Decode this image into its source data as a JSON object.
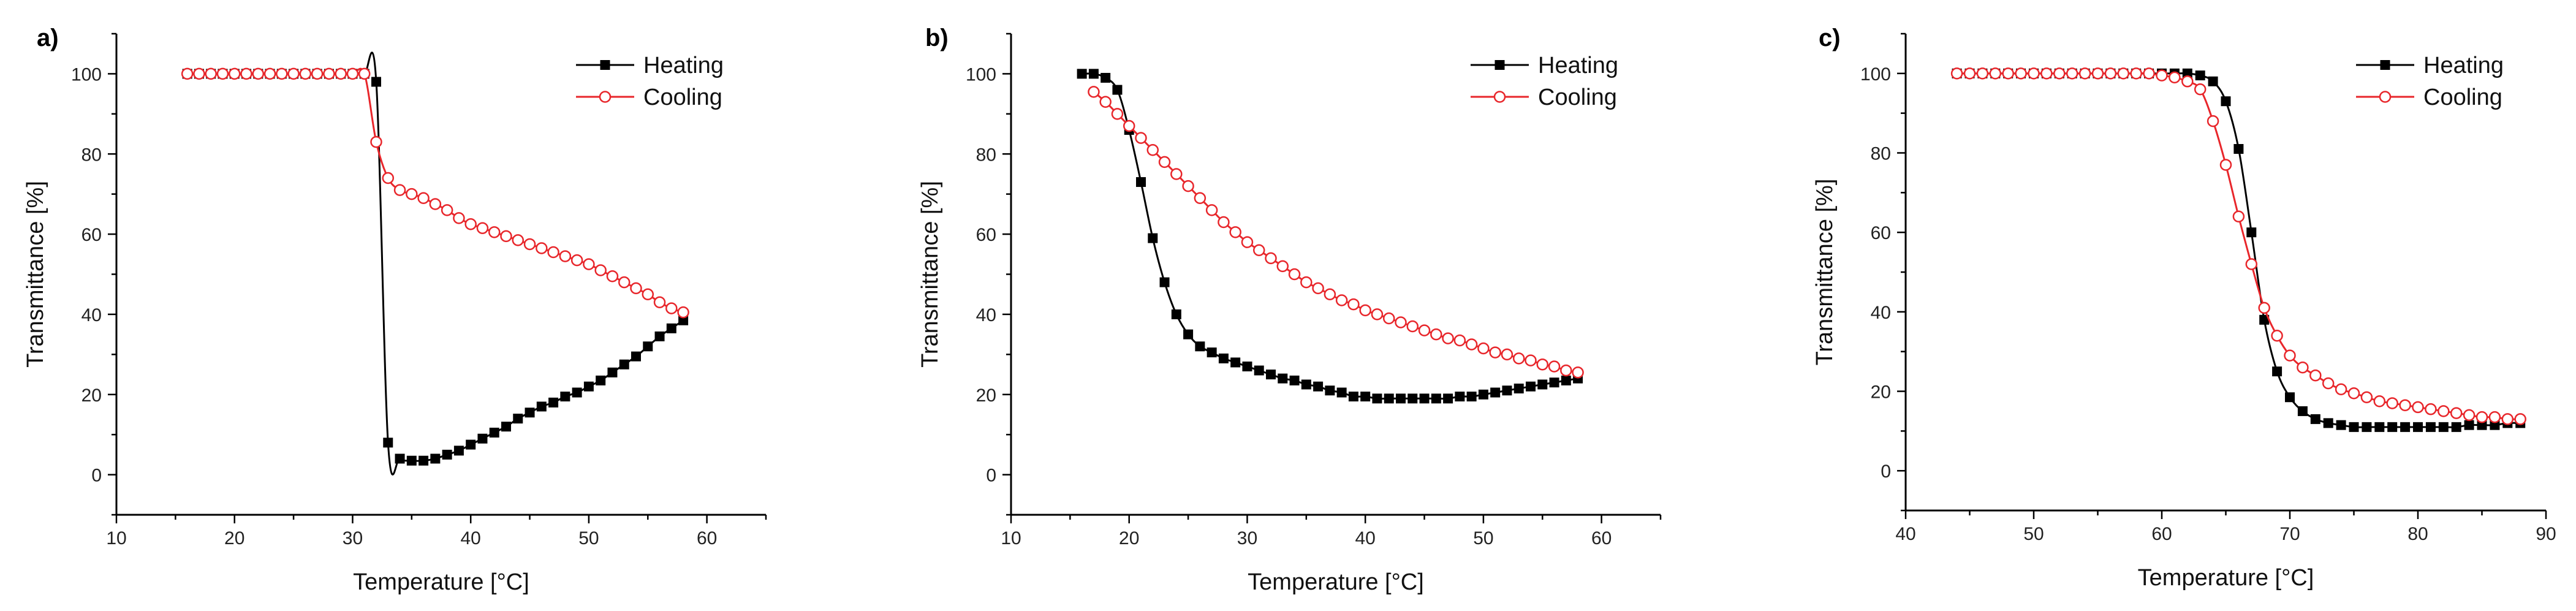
{
  "chart_data": [
    {
      "type": "line",
      "panel_label": "a)",
      "xlabel": "Temperature [°C]",
      "ylabel": "Transmittance [%]",
      "xlim": [
        10,
        65
      ],
      "ylim": [
        -10,
        110
      ],
      "xticks": [
        10,
        20,
        30,
        40,
        50,
        60
      ],
      "yticks": [
        0,
        20,
        40,
        60,
        80,
        100
      ],
      "legend_position": "top-right",
      "series": [
        {
          "name": "Heating",
          "color": "#000000",
          "marker": "filled-square",
          "x": [
            16,
            17,
            18,
            19,
            20,
            21,
            22,
            23,
            24,
            25,
            26,
            27,
            28,
            29,
            30,
            31,
            32,
            33,
            34,
            35,
            36,
            37,
            38,
            39,
            40,
            41,
            42,
            43,
            44,
            45,
            46,
            47,
            48,
            49,
            50,
            51,
            52,
            53,
            54,
            55,
            56,
            57,
            58
          ],
          "y": [
            100,
            100,
            100,
            100,
            100,
            100,
            100,
            100,
            100,
            100,
            100,
            100,
            100,
            100,
            100,
            100,
            98,
            8,
            4,
            3.5,
            3.5,
            4,
            5,
            6,
            7.5,
            9,
            10.5,
            12,
            14,
            15.5,
            17,
            18,
            19.5,
            20.5,
            22,
            23.5,
            25.5,
            27.5,
            29.5,
            32,
            34.5,
            36.5,
            38.5
          ]
        },
        {
          "name": "Cooling",
          "color": "#e8262b",
          "marker": "open-circle",
          "x": [
            16,
            17,
            18,
            19,
            20,
            21,
            22,
            23,
            24,
            25,
            26,
            27,
            28,
            29,
            30,
            31,
            32,
            33,
            34,
            35,
            36,
            37,
            38,
            39,
            40,
            41,
            42,
            43,
            44,
            45,
            46,
            47,
            48,
            49,
            50,
            51,
            52,
            53,
            54,
            55,
            56,
            57,
            58
          ],
          "y": [
            100,
            100,
            100,
            100,
            100,
            100,
            100,
            100,
            100,
            100,
            100,
            100,
            100,
            100,
            100,
            100,
            83,
            74,
            71,
            70,
            69,
            67.5,
            66,
            64,
            62.5,
            61.5,
            60.5,
            59.5,
            58.5,
            57.5,
            56.5,
            55.5,
            54.5,
            53.5,
            52.5,
            51,
            49.5,
            48,
            46.5,
            45,
            43,
            41.5,
            40.5
          ]
        }
      ]
    },
    {
      "type": "line",
      "panel_label": "b)",
      "xlabel": "Temperature [°C]",
      "ylabel": "Transmittance [%]",
      "xlim": [
        10,
        65
      ],
      "ylim": [
        -10,
        110
      ],
      "xticks": [
        10,
        20,
        30,
        40,
        50,
        60
      ],
      "yticks": [
        0,
        20,
        40,
        60,
        80,
        100
      ],
      "legend_position": "top-right",
      "series": [
        {
          "name": "Heating",
          "color": "#000000",
          "marker": "filled-square",
          "x": [
            16,
            17,
            18,
            19,
            20,
            21,
            22,
            23,
            24,
            25,
            26,
            27,
            28,
            29,
            30,
            31,
            32,
            33,
            34,
            35,
            36,
            37,
            38,
            39,
            40,
            41,
            42,
            43,
            44,
            45,
            46,
            47,
            48,
            49,
            50,
            51,
            52,
            53,
            54,
            55,
            56,
            57,
            58
          ],
          "y": [
            100,
            100,
            99,
            96,
            86,
            73,
            59,
            48,
            40,
            35,
            32,
            30.5,
            29,
            28,
            27,
            26,
            25,
            24,
            23.5,
            22.5,
            22,
            21,
            20.5,
            19.5,
            19.5,
            19,
            19,
            19,
            19,
            19,
            19,
            19,
            19.5,
            19.5,
            20,
            20.5,
            21,
            21.5,
            22,
            22.5,
            23,
            23.5,
            24
          ]
        },
        {
          "name": "Cooling",
          "color": "#e8262b",
          "marker": "open-circle",
          "x": [
            17,
            18,
            19,
            20,
            21,
            22,
            23,
            24,
            25,
            26,
            27,
            28,
            29,
            30,
            31,
            32,
            33,
            34,
            35,
            36,
            37,
            38,
            39,
            40,
            41,
            42,
            43,
            44,
            45,
            46,
            47,
            48,
            49,
            50,
            51,
            52,
            53,
            54,
            55,
            56,
            57,
            58
          ],
          "y": [
            95.5,
            93,
            90,
            87,
            84,
            81,
            78,
            75,
            72,
            69,
            66,
            63,
            60.5,
            58,
            56,
            54,
            52,
            50,
            48,
            46.5,
            45,
            43.5,
            42.5,
            41,
            40,
            39,
            38,
            37,
            36,
            35,
            34,
            33.5,
            32.5,
            31.5,
            30.5,
            30,
            29,
            28.5,
            27.5,
            27,
            26,
            25.5
          ]
        }
      ]
    },
    {
      "type": "line",
      "panel_label": "c)",
      "xlabel": "Temperature [°C]",
      "ylabel": "Transmittance [%]",
      "xlim": [
        40,
        90
      ],
      "ylim": [
        -10,
        110
      ],
      "xticks": [
        40,
        50,
        60,
        70,
        80,
        90
      ],
      "yticks": [
        0,
        20,
        40,
        60,
        80,
        100
      ],
      "legend_position": "top-right",
      "series": [
        {
          "name": "Heating",
          "color": "#000000",
          "marker": "filled-square",
          "x": [
            44,
            45,
            46,
            47,
            48,
            49,
            50,
            51,
            52,
            53,
            54,
            55,
            56,
            57,
            58,
            59,
            60,
            61,
            62,
            63,
            64,
            65,
            66,
            67,
            68,
            69,
            70,
            71,
            72,
            73,
            74,
            75,
            76,
            77,
            78,
            79,
            80,
            81,
            82,
            83,
            84,
            85,
            86,
            87,
            88
          ],
          "y": [
            100,
            100,
            100,
            100,
            100,
            100,
            100,
            100,
            100,
            100,
            100,
            100,
            100,
            100,
            100,
            100,
            100,
            100,
            100,
            99.5,
            98,
            93,
            81,
            60,
            38,
            25,
            18.5,
            15,
            13,
            12,
            11.5,
            11,
            11,
            11,
            11,
            11,
            11,
            11,
            11,
            11,
            11.5,
            11.5,
            11.5,
            12,
            12
          ]
        },
        {
          "name": "Cooling",
          "color": "#e8262b",
          "marker": "open-circle",
          "x": [
            44,
            45,
            46,
            47,
            48,
            49,
            50,
            51,
            52,
            53,
            54,
            55,
            56,
            57,
            58,
            59,
            60,
            61,
            62,
            63,
            64,
            65,
            66,
            67,
            68,
            69,
            70,
            71,
            72,
            73,
            74,
            75,
            76,
            77,
            78,
            79,
            80,
            81,
            82,
            83,
            84,
            85,
            86,
            87,
            88
          ],
          "y": [
            100,
            100,
            100,
            100,
            100,
            100,
            100,
            100,
            100,
            100,
            100,
            100,
            100,
            100,
            100,
            100,
            99.5,
            99,
            98,
            96,
            88,
            77,
            64,
            52,
            41,
            34,
            29,
            26,
            24,
            22,
            20.5,
            19.5,
            18.5,
            17.5,
            17,
            16.5,
            16,
            15.5,
            15,
            14.5,
            14,
            13.5,
            13.5,
            13,
            13
          ]
        }
      ]
    }
  ]
}
